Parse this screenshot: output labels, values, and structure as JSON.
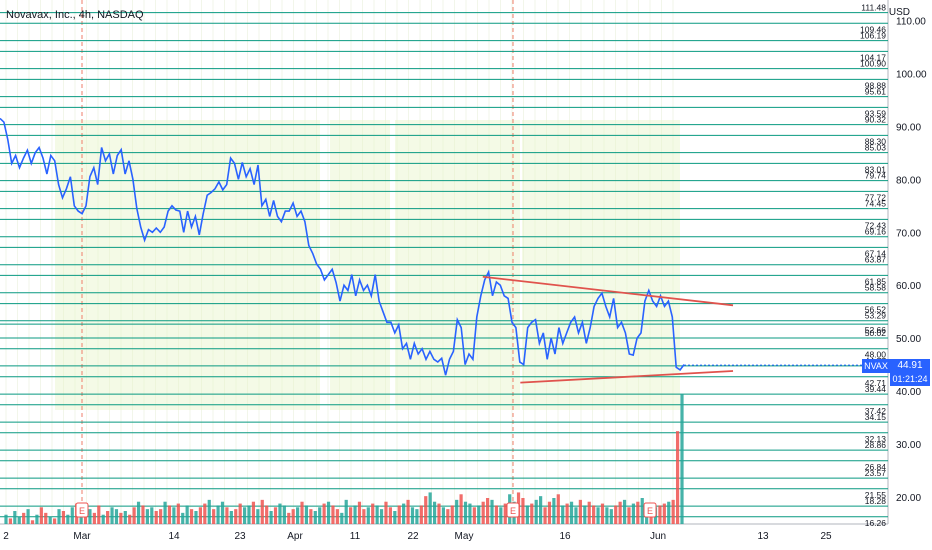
{
  "header": {
    "title": "Novavax, Inc., 4h, NASDAQ",
    "currency": "USD"
  },
  "price_tag": {
    "symbol": "NVAX",
    "price": "44.91",
    "countdown": "01:21:24"
  },
  "colors": {
    "price_line": "#2962ff",
    "level_line": "#089981",
    "trendline": "#e0534d",
    "highlight": "#e6f4c8",
    "volume_up": "#26a69a",
    "volume_down": "#ef5350"
  },
  "chart_data": {
    "type": "line",
    "title": "Novavax, Inc., 4h, NASDAQ",
    "ylabel": "USD",
    "ylim": [
      14,
      114
    ],
    "y_ticks": [
      "110.00",
      "100.00",
      "90.00",
      "80.00",
      "70.00",
      "60.00",
      "50.00",
      "40.00",
      "30.00",
      "20.00"
    ],
    "x_ticks": [
      "2",
      "Mar",
      "14",
      "23",
      "Apr",
      "11",
      "22",
      "May",
      "16",
      "Jun",
      "13",
      "25"
    ],
    "levels": [
      111.48,
      109.46,
      106.19,
      104.17,
      100.9,
      98.88,
      95.61,
      93.59,
      90.32,
      88.3,
      85.03,
      83.01,
      79.74,
      77.72,
      74.45,
      72.43,
      69.16,
      67.14,
      63.87,
      61.85,
      58.58,
      56.52,
      53.29,
      52.66,
      50.02,
      48.0,
      44.77,
      42.71,
      39.44,
      37.42,
      34.15,
      32.13,
      28.86,
      26.84,
      23.57,
      21.55,
      18.28,
      16.26
    ],
    "level_labels": [
      "111.48",
      "109.46",
      "106.19",
      "104.17",
      "100.90",
      "98.88",
      "95.61",
      "93.59",
      "90.32",
      "88.30",
      "85.03",
      "83.01",
      "79.74",
      "77.72",
      "74.45",
      "72.43",
      "69.16",
      "67.14",
      "63.87",
      "61.85",
      "58.58",
      "56.52",
      "53.29",
      "52.66",
      "50.02",
      "48.00",
      "44.77",
      "42.71",
      "39.44",
      "37.42",
      "34.15",
      "32.13",
      "28.86",
      "26.84",
      "23.57",
      "21.55",
      "18.28",
      "16.26"
    ],
    "series": [
      {
        "x_start": "Feb 23",
        "x_end": "Jun 3",
        "values": [
          91.5,
          90.8,
          87.5,
          83,
          84.5,
          82.2,
          84,
          85.5,
          83,
          85,
          86,
          84,
          81,
          84.5,
          83.5,
          79,
          76.5,
          78.2,
          80.5,
          75,
          74,
          73.5,
          75,
          80.5,
          82.2,
          79,
          86,
          83.5,
          84.8,
          81,
          84.5,
          85.6,
          81,
          83.5,
          80,
          74.5,
          71,
          68.5,
          70.5,
          70,
          70.8,
          70,
          71,
          74,
          75,
          74.2,
          74,
          70,
          74,
          71,
          73,
          69.5,
          73.5,
          77,
          77.5,
          78.2,
          79.5,
          78,
          79,
          84,
          83,
          80,
          83.2,
          80.5,
          82,
          79,
          82.7,
          75,
          76.2,
          73,
          76,
          73,
          72,
          74,
          74,
          75.5,
          73,
          74,
          72,
          67.5,
          66,
          64,
          63,
          61,
          62,
          63,
          60.5,
          57,
          60,
          59,
          62,
          58,
          61,
          59,
          60,
          58,
          62,
          57,
          55,
          53,
          53,
          51,
          52.5,
          48,
          49,
          46,
          49,
          47,
          48,
          46,
          47.5,
          46,
          45.5,
          46.2,
          43,
          46,
          47.5,
          53.5,
          52,
          45,
          47,
          46,
          54,
          58,
          61,
          62.5,
          58,
          60.6,
          60,
          58,
          57.5,
          53,
          52,
          45.5,
          45,
          52,
          53,
          53.5,
          49,
          51,
          46,
          50,
          47,
          52,
          49,
          51,
          53,
          54,
          51,
          53,
          49,
          52,
          56,
          57.5,
          58.5,
          56,
          54,
          57.5,
          52,
          53,
          51,
          47,
          46.8,
          50,
          51,
          57,
          59,
          57,
          56,
          58,
          56,
          57,
          54,
          44.5,
          44,
          45
        ],
        "highlight_x": [
          "Feb 28",
          "Mar 9"
        ]
      }
    ],
    "trendlines": [
      {
        "from": [
          "May 4",
          61.6
        ],
        "to": [
          "Jun 5",
          56.2
        ]
      },
      {
        "from": [
          "May 10",
          41.6
        ],
        "to": [
          "Jun 5",
          43.8
        ]
      }
    ],
    "volume": {
      "values": [
        5,
        3,
        7,
        4,
        6,
        8,
        2,
        5,
        9,
        6,
        4,
        3,
        8,
        7,
        5,
        9,
        11,
        6,
        7,
        8,
        6,
        10,
        5,
        7,
        9,
        8,
        6,
        7,
        5,
        9,
        12,
        10,
        8,
        9,
        7,
        8,
        12,
        10,
        9,
        11,
        6,
        10,
        8,
        7,
        9,
        11,
        13,
        8,
        10,
        12,
        9,
        7,
        8,
        11,
        9,
        10,
        12,
        8,
        13,
        10,
        7,
        9,
        11,
        10,
        6,
        8,
        9,
        12,
        10,
        8,
        7,
        9,
        11,
        12,
        10,
        8,
        6,
        13,
        9,
        10,
        12,
        8,
        9,
        11,
        10,
        8,
        12,
        9,
        7,
        10,
        11,
        13,
        9,
        8,
        10,
        15,
        17,
        12,
        11,
        9,
        8,
        10,
        13,
        16,
        12,
        11,
        9,
        10,
        12,
        14,
        13,
        10,
        9,
        11,
        16,
        12,
        17,
        14,
        10,
        11,
        13,
        15,
        9,
        12,
        14,
        16,
        10,
        11,
        12,
        9,
        13,
        10,
        12,
        10,
        9,
        11,
        9,
        8,
        10,
        12,
        13,
        9,
        11,
        12,
        14,
        11,
        8,
        9,
        10,
        11,
        12,
        13,
        50,
        70
      ],
      "up": [
        1,
        0,
        1,
        1,
        0,
        1,
        0,
        1,
        0,
        0,
        1,
        0,
        1,
        0,
        1,
        1,
        0,
        1,
        0,
        1,
        0,
        0,
        1,
        0,
        1,
        1,
        0,
        1,
        0,
        0,
        1,
        0,
        1,
        1,
        0,
        0,
        1,
        0,
        1,
        0,
        1,
        1,
        0,
        1,
        0,
        0,
        1,
        0,
        1,
        1,
        0,
        1,
        0,
        0,
        1,
        1,
        0,
        1,
        0,
        0,
        1,
        0,
        1,
        1,
        0,
        0,
        1,
        0,
        1,
        0,
        1,
        1,
        0,
        1,
        0,
        0,
        1,
        1,
        0,
        1,
        0,
        0,
        1,
        0,
        1,
        1,
        0,
        0,
        1,
        0,
        1,
        0,
        1,
        1,
        0,
        0,
        1,
        1,
        0,
        1,
        0,
        0,
        1,
        0,
        1,
        1,
        0,
        1,
        0,
        0,
        1,
        0,
        1,
        0,
        1,
        1,
        0,
        0,
        1,
        0,
        1,
        1,
        0,
        0,
        1,
        0,
        1,
        0,
        1,
        1,
        0,
        1,
        0,
        0,
        1,
        0,
        1,
        1,
        0,
        0,
        1,
        0,
        1,
        0,
        1,
        1,
        0,
        1,
        0,
        0,
        1,
        0,
        0,
        1
      ]
    },
    "earnings_markers": [
      "E",
      "E",
      "E"
    ]
  }
}
